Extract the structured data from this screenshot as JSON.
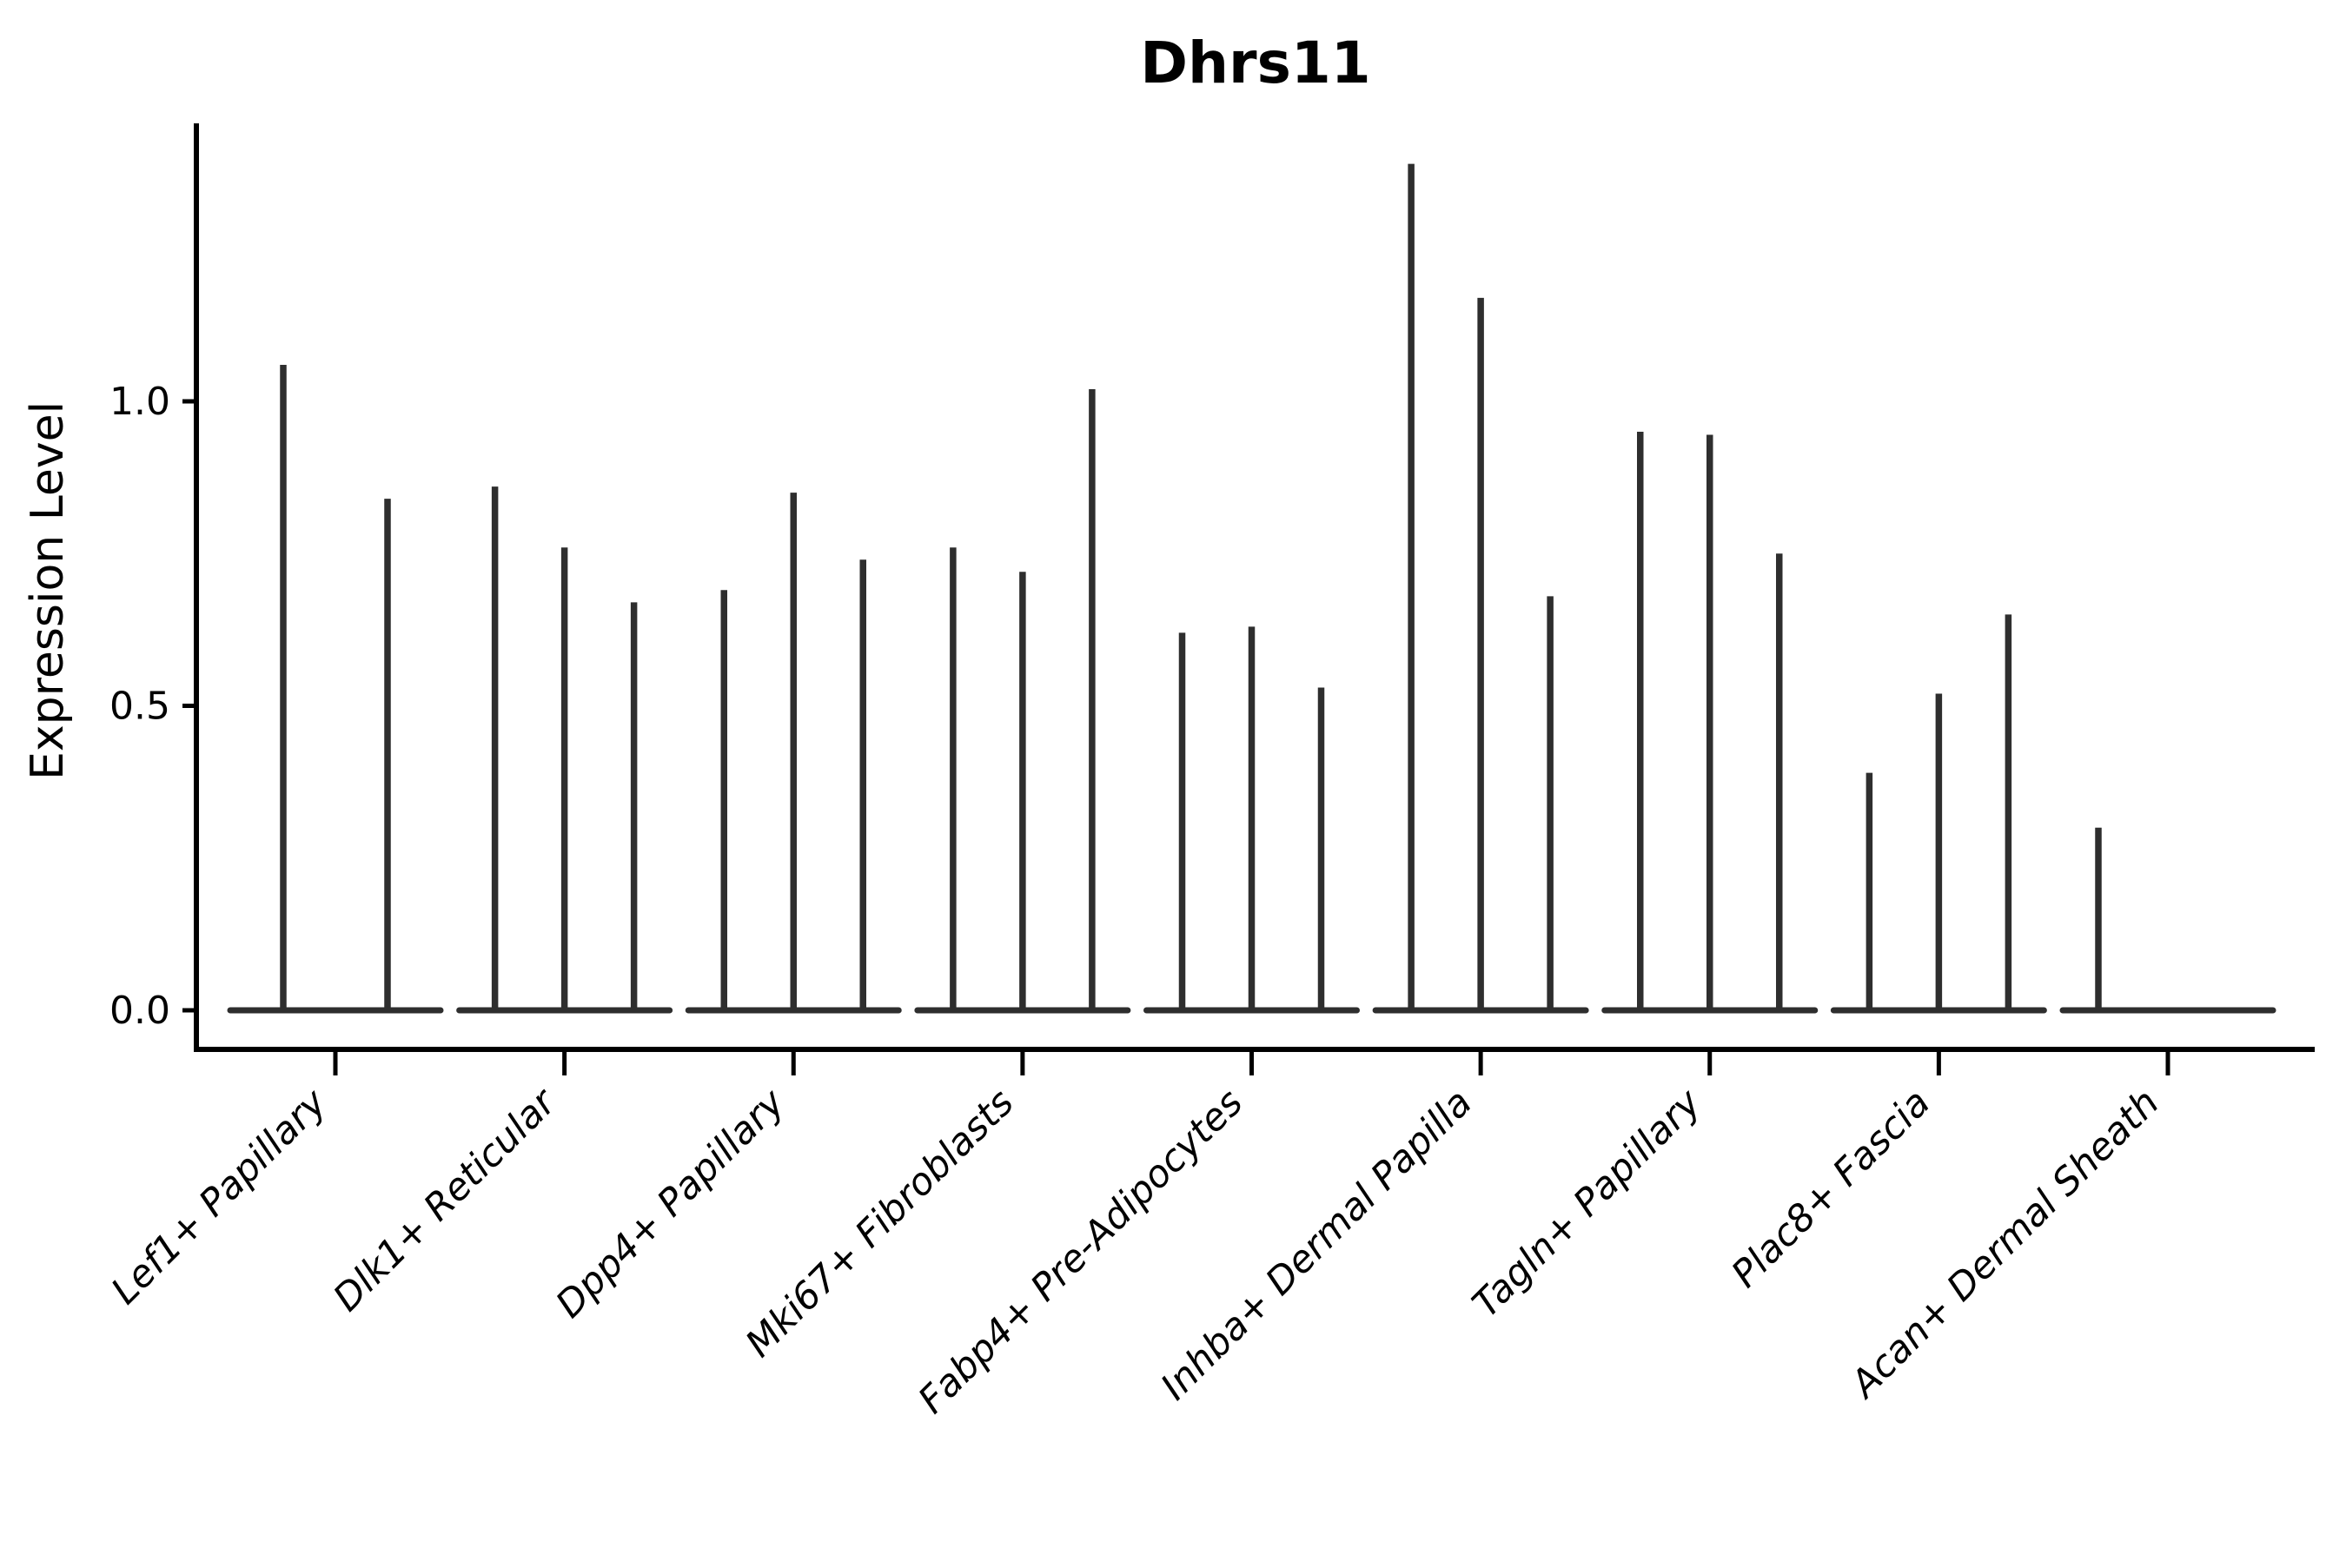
{
  "title": "Dhrs11",
  "colors": {
    "violin": "#2e2e2e",
    "axis": "#000000",
    "background": "#ffffff",
    "text": "#000000"
  },
  "chart_data": {
    "type": "violin",
    "title": "Dhrs11",
    "xlabel": "",
    "ylabel": "Expression Level",
    "ylim": [
      0,
      1.45
    ],
    "yticks": [
      0.0,
      0.5,
      1.0
    ],
    "ytick_labels": [
      "0.0",
      "0.5",
      "1.0"
    ],
    "grid": false,
    "legend": "none",
    "categories": [
      "Lef1+ Papillary",
      "Dlk1+ Reticular",
      "Dpp4+ Papillary",
      "Mki67+ Fibroblasts",
      "Fabp4+ Pre-Adipocytes",
      "Inhba+ Dermal Papilla",
      "Tagln+ Papillary",
      "Plac8+ Fascia",
      "Acan+ Dermal Sheath"
    ],
    "groups": [
      {
        "category": "Lef1+ Papillary",
        "spikes": [
          {
            "offset": -60,
            "max": 1.06
          },
          {
            "offset": 60,
            "max": 0.84
          }
        ]
      },
      {
        "category": "Dlk1+ Reticular",
        "spikes": [
          {
            "offset": -80,
            "max": 0.86
          },
          {
            "offset": 0,
            "max": 0.76
          },
          {
            "offset": 80,
            "max": 0.67
          }
        ]
      },
      {
        "category": "Dpp4+ Papillary",
        "spikes": [
          {
            "offset": -80,
            "max": 0.69
          },
          {
            "offset": 0,
            "max": 0.85
          },
          {
            "offset": 80,
            "max": 0.74
          }
        ]
      },
      {
        "category": "Mki67+ Fibroblasts",
        "spikes": [
          {
            "offset": -80,
            "max": 0.76
          },
          {
            "offset": 0,
            "max": 0.72
          },
          {
            "offset": 80,
            "max": 1.02
          }
        ]
      },
      {
        "category": "Fabp4+ Pre-Adipocytes",
        "spikes": [
          {
            "offset": -80,
            "max": 0.62
          },
          {
            "offset": 0,
            "max": 0.63
          },
          {
            "offset": 80,
            "max": 0.53
          }
        ]
      },
      {
        "category": "Inhba+ Dermal Papilla",
        "spikes": [
          {
            "offset": -80,
            "max": 1.39
          },
          {
            "offset": 0,
            "max": 1.17
          },
          {
            "offset": 80,
            "max": 0.68
          }
        ]
      },
      {
        "category": "Tagln+ Papillary",
        "spikes": [
          {
            "offset": -80,
            "max": 0.95
          },
          {
            "offset": 0,
            "max": 0.945
          },
          {
            "offset": 80,
            "max": 0.75
          }
        ]
      },
      {
        "category": "Plac8+ Fascia",
        "spikes": [
          {
            "offset": -80,
            "max": 0.39
          },
          {
            "offset": 0,
            "max": 0.52
          },
          {
            "offset": 80,
            "max": 0.65
          }
        ]
      },
      {
        "category": "Acan+ Dermal Sheath",
        "spikes": [
          {
            "offset": -80,
            "max": 0.3
          }
        ]
      }
    ]
  }
}
